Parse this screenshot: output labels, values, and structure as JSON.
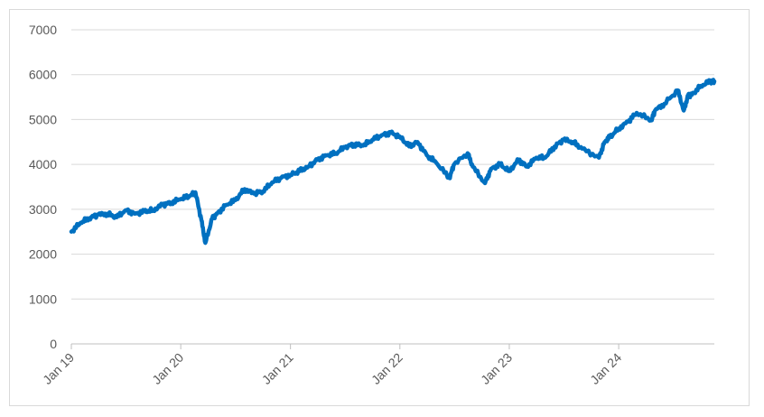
{
  "chart_data": {
    "type": "line",
    "title": "",
    "xlabel": "",
    "ylabel": "",
    "ylim": [
      0,
      7000
    ],
    "yticks": [
      0,
      1000,
      2000,
      3000,
      4000,
      5000,
      6000,
      7000
    ],
    "xlim": [
      "2019-01-01",
      "2024-11-15"
    ],
    "xtick_labels": [
      {
        "date": "2019-01-01",
        "label": "Jan 19"
      },
      {
        "date": "2020-01-01",
        "label": "Jan 20"
      },
      {
        "date": "2021-01-01",
        "label": "Jan 21"
      },
      {
        "date": "2022-01-01",
        "label": "Jan 22"
      },
      {
        "date": "2023-01-01",
        "label": "Jan 23"
      },
      {
        "date": "2024-01-01",
        "label": "Jan 24"
      }
    ],
    "grid": true,
    "line_color": "#0070c0",
    "series": [
      {
        "x": [
          "2019-01-01",
          "2019-02-01",
          "2019-03-01",
          "2019-04-01",
          "2019-05-01",
          "2019-06-01",
          "2019-07-01",
          "2019-08-01",
          "2019-09-01",
          "2019-10-01",
          "2019-11-01",
          "2019-12-01",
          "2020-01-01",
          "2020-02-01",
          "2020-02-19",
          "2020-03-10",
          "2020-03-23",
          "2020-04-15",
          "2020-05-01",
          "2020-06-01",
          "2020-07-01",
          "2020-08-01",
          "2020-09-01",
          "2020-10-01",
          "2020-11-01",
          "2020-12-01",
          "2021-01-01",
          "2021-02-01",
          "2021-03-01",
          "2021-04-01",
          "2021-05-01",
          "2021-06-01",
          "2021-07-01",
          "2021-08-01",
          "2021-09-01",
          "2021-10-01",
          "2021-11-01",
          "2021-12-01",
          "2022-01-01",
          "2022-02-01",
          "2022-03-01",
          "2022-04-01",
          "2022-05-01",
          "2022-06-15",
          "2022-07-01",
          "2022-08-15",
          "2022-09-01",
          "2022-10-12",
          "2022-11-01",
          "2022-12-01",
          "2023-01-01",
          "2023-02-01",
          "2023-03-01",
          "2023-04-01",
          "2023-05-01",
          "2023-06-01",
          "2023-07-01",
          "2023-08-01",
          "2023-09-01",
          "2023-10-27",
          "2023-11-15",
          "2023-12-01",
          "2024-01-01",
          "2024-02-01",
          "2024-03-01",
          "2024-04-19",
          "2024-05-01",
          "2024-06-01",
          "2024-07-16",
          "2024-08-05",
          "2024-08-20",
          "2024-09-01",
          "2024-10-01",
          "2024-11-01",
          "2024-11-15"
        ],
        "values": [
          2500,
          2700,
          2800,
          2880,
          2900,
          2820,
          2980,
          2900,
          2950,
          2980,
          3100,
          3150,
          3230,
          3300,
          3380,
          2750,
          2250,
          2800,
          2900,
          3100,
          3200,
          3450,
          3350,
          3400,
          3600,
          3700,
          3770,
          3850,
          3950,
          4100,
          4200,
          4250,
          4380,
          4450,
          4420,
          4550,
          4650,
          4700,
          4620,
          4400,
          4500,
          4200,
          4050,
          3700,
          4000,
          4250,
          3950,
          3580,
          3900,
          4000,
          3850,
          4100,
          3950,
          4150,
          4150,
          4400,
          4550,
          4500,
          4350,
          4150,
          4500,
          4600,
          4800,
          4950,
          5150,
          4980,
          5200,
          5350,
          5650,
          5200,
          5550,
          5550,
          5750,
          5850,
          5850
        ]
      }
    ]
  }
}
